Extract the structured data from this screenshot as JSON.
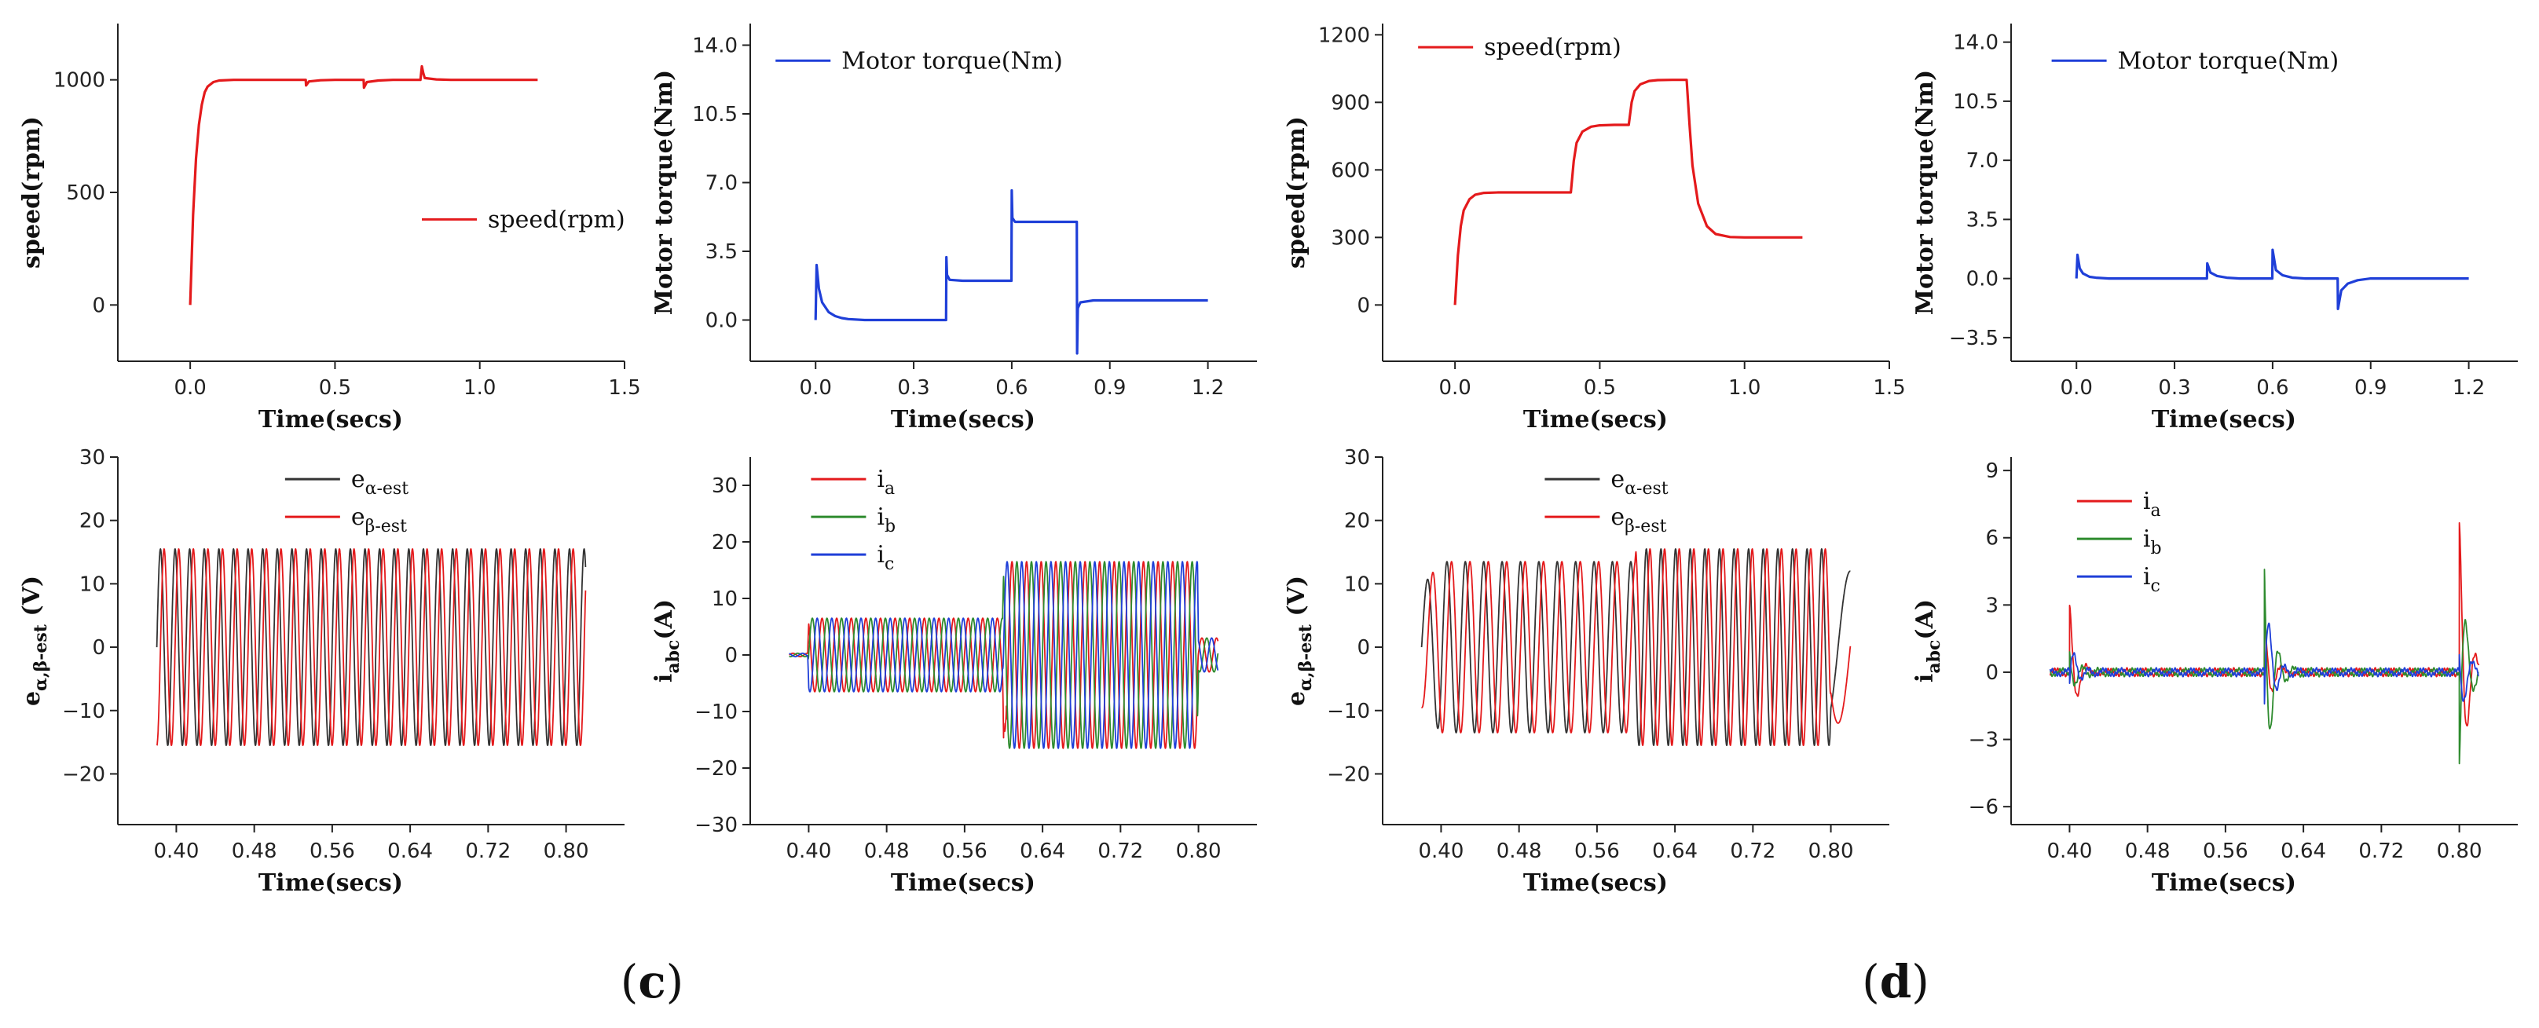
{
  "captions": {
    "c": "c",
    "d": "d"
  },
  "chart_data": [
    {
      "id": "c_speed",
      "type": "line",
      "panel": "c",
      "xlabel": "Time(secs)",
      "ylabel": "speed(rpm)",
      "xlim": [
        -0.25,
        1.5
      ],
      "ylim": [
        -250,
        1250
      ],
      "xticks": [
        0.0,
        0.5,
        1.0,
        1.5
      ],
      "xtick_labels": [
        "0.0",
        "0.5",
        "1.0",
        "1.5"
      ],
      "yticks": [
        0,
        500,
        1000
      ],
      "ytick_labels": [
        "0",
        "500",
        "1000"
      ],
      "grid": false,
      "legend": "center-right",
      "series": [
        {
          "name": "speed(rpm)",
          "color": "#e41a1c",
          "x": [
            0,
            0.01,
            0.02,
            0.03,
            0.04,
            0.05,
            0.06,
            0.08,
            0.1,
            0.15,
            0.2,
            0.3,
            0.399,
            0.4,
            0.41,
            0.45,
            0.5,
            0.599,
            0.6,
            0.61,
            0.65,
            0.7,
            0.795,
            0.8,
            0.805,
            0.81,
            0.85,
            0.9,
            1.0,
            1.1,
            1.2
          ],
          "y": [
            0,
            400,
            650,
            800,
            890,
            945,
            970,
            990,
            997,
            1000,
            1000,
            1000,
            1000,
            975,
            993,
            998,
            1000,
            1000,
            965,
            990,
            997,
            1000,
            1000,
            1060,
            1030,
            1008,
            1002,
            1000,
            1000,
            1000,
            1000
          ]
        }
      ]
    },
    {
      "id": "c_torque",
      "type": "line",
      "panel": "c",
      "xlabel": "Time(secs)",
      "ylabel": "Motor torque(Nm)",
      "xlim": [
        -0.2,
        1.35
      ],
      "ylim": [
        -2.1,
        15.1
      ],
      "xticks": [
        0.0,
        0.3,
        0.6,
        0.9,
        1.2
      ],
      "xtick_labels": [
        "0.0",
        "0.3",
        "0.6",
        "0.9",
        "1.2"
      ],
      "yticks": [
        0.0,
        3.5,
        7.0,
        10.5,
        14.0
      ],
      "ytick_labels": [
        "0.0",
        "3.5",
        "7.0",
        "10.5",
        "14.0"
      ],
      "grid": false,
      "legend": "top-right",
      "series": [
        {
          "name": "Motor torque(Nm)",
          "color": "#1f3fd8",
          "x": [
            0,
            0.003,
            0.01,
            0.02,
            0.04,
            0.06,
            0.08,
            0.1,
            0.15,
            0.2,
            0.3,
            0.399,
            0.4,
            0.402,
            0.41,
            0.45,
            0.5,
            0.599,
            0.6,
            0.602,
            0.61,
            0.65,
            0.7,
            0.799,
            0.8,
            0.802,
            0.81,
            0.85,
            0.9,
            1.0,
            1.1,
            1.2
          ],
          "y": [
            0,
            2.8,
            1.6,
            0.9,
            0.4,
            0.2,
            0.1,
            0.05,
            0,
            0,
            0,
            0,
            3.2,
            2.3,
            2.05,
            2.0,
            2.0,
            2.0,
            6.6,
            5.2,
            5.0,
            5.0,
            5.0,
            5.0,
            -1.7,
            0.6,
            0.9,
            1.0,
            1.0,
            1.0,
            1.0,
            1.0
          ]
        }
      ]
    },
    {
      "id": "c_emf",
      "type": "line",
      "panel": "c",
      "xlabel": "Time(secs)",
      "ylabel": "eα,β-est (V)",
      "xlim": [
        0.34,
        0.86
      ],
      "ylim": [
        -28,
        30
      ],
      "xticks": [
        0.4,
        0.48,
        0.56,
        0.64,
        0.72,
        0.8
      ],
      "xtick_labels": [
        "0.40",
        "0.48",
        "0.56",
        "0.64",
        "0.72",
        "0.80"
      ],
      "yticks": [
        -20,
        -10,
        0,
        10,
        20,
        30
      ],
      "ytick_labels": [
        "−20",
        "−10",
        "0",
        "10",
        "20",
        "30"
      ],
      "grid": false,
      "legend": "top-center",
      "series": [
        {
          "name": "eα-est",
          "color": "#333333",
          "amplitude": 15.5,
          "frequency_hz": 66.7,
          "t_start": 0.38,
          "t_end": 0.82,
          "phase_deg": 0
        },
        {
          "name": "eβ-est",
          "color": "#e41a1c",
          "amplitude": 15.5,
          "frequency_hz": 66.7,
          "t_start": 0.38,
          "t_end": 0.82,
          "phase_deg": -90
        }
      ]
    },
    {
      "id": "c_current",
      "type": "line",
      "panel": "c",
      "xlabel": "Time(secs)",
      "ylabel": "iabc(A)",
      "xlim": [
        0.34,
        0.86
      ],
      "ylim": [
        -30,
        35
      ],
      "xticks": [
        0.4,
        0.48,
        0.56,
        0.64,
        0.72,
        0.8
      ],
      "xtick_labels": [
        "0.40",
        "0.48",
        "0.56",
        "0.64",
        "0.72",
        "0.80"
      ],
      "yticks": [
        -30,
        -20,
        -10,
        0,
        10,
        20,
        30
      ],
      "ytick_labels": [
        "−30",
        "−20",
        "−10",
        "0",
        "10",
        "20",
        "30"
      ],
      "grid": false,
      "legend": "top-left",
      "envelope": {
        "t": [
          0.38,
          0.399,
          0.4,
          0.599,
          0.6,
          0.799,
          0.8,
          0.82
        ],
        "amp": [
          0.3,
          0.3,
          6.5,
          6.5,
          16.5,
          16.5,
          3,
          3
        ]
      },
      "frequency_hz": 66.7,
      "series": [
        {
          "name": "ia",
          "color": "#e41a1c",
          "phase_deg": 0
        },
        {
          "name": "ib",
          "color": "#2e8b2e",
          "phase_deg": -120
        },
        {
          "name": "ic",
          "color": "#1f3fd8",
          "phase_deg": 120
        }
      ]
    },
    {
      "id": "d_speed",
      "type": "line",
      "panel": "d",
      "xlabel": "Time(secs)",
      "ylabel": "speed(rpm)",
      "xlim": [
        -0.25,
        1.5
      ],
      "ylim": [
        -250,
        1250
      ],
      "xticks": [
        0.0,
        0.5,
        1.0,
        1.5
      ],
      "xtick_labels": [
        "0.0",
        "0.5",
        "1.0",
        "1.5"
      ],
      "yticks": [
        0,
        300,
        600,
        900,
        1200
      ],
      "ytick_labels": [
        "0",
        "300",
        "600",
        "900",
        "1200"
      ],
      "grid": false,
      "legend": "top-left",
      "series": [
        {
          "name": "speed(rpm)",
          "color": "#e41a1c",
          "x": [
            0,
            0.01,
            0.02,
            0.03,
            0.05,
            0.07,
            0.1,
            0.15,
            0.2,
            0.3,
            0.4,
            0.41,
            0.42,
            0.44,
            0.47,
            0.5,
            0.55,
            0.6,
            0.61,
            0.62,
            0.64,
            0.67,
            0.7,
            0.75,
            0.8,
            0.81,
            0.82,
            0.84,
            0.87,
            0.9,
            0.95,
            1.0,
            1.1,
            1.2
          ],
          "y": [
            0,
            220,
            350,
            420,
            470,
            490,
            498,
            500,
            500,
            500,
            500,
            640,
            720,
            770,
            792,
            798,
            800,
            800,
            900,
            950,
            980,
            995,
            999,
            1000,
            1000,
            800,
            620,
            450,
            350,
            315,
            302,
            300,
            300,
            300
          ]
        }
      ]
    },
    {
      "id": "d_torque",
      "type": "line",
      "panel": "d",
      "xlabel": "Time(secs)",
      "ylabel": "Motor torque(Nm)",
      "xlim": [
        -0.2,
        1.35
      ],
      "ylim": [
        -4.9,
        15.1
      ],
      "xticks": [
        0.0,
        0.3,
        0.6,
        0.9,
        1.2
      ],
      "xtick_labels": [
        "0.0",
        "0.3",
        "0.6",
        "0.9",
        "1.2"
      ],
      "yticks": [
        -3.5,
        0.0,
        3.5,
        7.0,
        10.5,
        14.0
      ],
      "ytick_labels": [
        "−3.5",
        "0.0",
        "3.5",
        "7.0",
        "10.5",
        "14.0"
      ],
      "grid": false,
      "legend": "top-right",
      "series": [
        {
          "name": "Motor torque(Nm)",
          "color": "#1f3fd8",
          "x": [
            0,
            0.003,
            0.01,
            0.02,
            0.04,
            0.06,
            0.1,
            0.2,
            0.3,
            0.399,
            0.4,
            0.41,
            0.43,
            0.46,
            0.5,
            0.599,
            0.6,
            0.61,
            0.63,
            0.66,
            0.7,
            0.799,
            0.8,
            0.81,
            0.83,
            0.86,
            0.9,
            1.0,
            1.1,
            1.2
          ],
          "y": [
            0,
            1.4,
            0.6,
            0.3,
            0.1,
            0.05,
            0,
            0,
            0,
            0,
            0.9,
            0.35,
            0.15,
            0.05,
            0,
            0,
            1.7,
            0.5,
            0.2,
            0.05,
            0,
            0,
            -1.8,
            -0.7,
            -0.3,
            -0.1,
            0,
            0,
            0,
            0
          ]
        }
      ]
    },
    {
      "id": "d_emf",
      "type": "line",
      "panel": "d",
      "xlabel": "Time(secs)",
      "ylabel": "eα,β-est (V)",
      "xlim": [
        0.34,
        0.86
      ],
      "ylim": [
        -28,
        30
      ],
      "xticks": [
        0.4,
        0.48,
        0.56,
        0.64,
        0.72,
        0.8
      ],
      "xtick_labels": [
        "0.40",
        "0.48",
        "0.56",
        "0.64",
        "0.72",
        "0.80"
      ],
      "yticks": [
        -20,
        -10,
        0,
        10,
        20,
        30
      ],
      "ytick_labels": [
        "−20",
        "−10",
        "0",
        "10",
        "20",
        "30"
      ],
      "grid": false,
      "legend": "top-center",
      "envelope": {
        "t": [
          0.38,
          0.4,
          0.599,
          0.6,
          0.799,
          0.8,
          0.82
        ],
        "amp": [
          9.5,
          13.5,
          13.5,
          15.5,
          15.5,
          12,
          12
        ]
      },
      "frequency": {
        "t": [
          0.38,
          0.4,
          0.599,
          0.6,
          0.799,
          0.8,
          0.82
        ],
        "hz": [
          40,
          53,
          53,
          66.7,
          66.7,
          20,
          20
        ]
      },
      "series": [
        {
          "name": "eα-est",
          "color": "#333333",
          "phase_deg": 0
        },
        {
          "name": "eβ-est",
          "color": "#e41a1c",
          "phase_deg": -90
        }
      ]
    },
    {
      "id": "d_current",
      "type": "line",
      "panel": "d",
      "xlabel": "Time(secs)",
      "ylabel": "iabc(A)",
      "xlim": [
        0.34,
        0.86
      ],
      "ylim": [
        -6.8,
        9.6
      ],
      "xticks": [
        0.4,
        0.48,
        0.56,
        0.64,
        0.72,
        0.8
      ],
      "xtick_labels": [
        "0.40",
        "0.48",
        "0.56",
        "0.64",
        "0.72",
        "0.80"
      ],
      "yticks": [
        -6,
        -3,
        0,
        3,
        6,
        9
      ],
      "ytick_labels": [
        "−6",
        "−3",
        "0",
        "3",
        "6",
        "9"
      ],
      "grid": false,
      "legend": "top-left",
      "spikes": [
        {
          "t": 0.4,
          "values": {
            "ia": 3.0,
            "ib": 1.2,
            "ic": -1.6
          }
        },
        {
          "t": 0.6,
          "values": {
            "ia": 2.4,
            "ib": 5.6,
            "ic": -4.0
          }
        },
        {
          "t": 0.8,
          "values": {
            "ia": 6.7,
            "ib": -5.0,
            "ic": 2.2
          }
        }
      ],
      "series": [
        {
          "name": "ia",
          "color": "#e41a1c",
          "phase_deg": 0
        },
        {
          "name": "ib",
          "color": "#2e8b2e",
          "phase_deg": -120
        },
        {
          "name": "ic",
          "color": "#1f3fd8",
          "phase_deg": 120
        }
      ]
    }
  ]
}
